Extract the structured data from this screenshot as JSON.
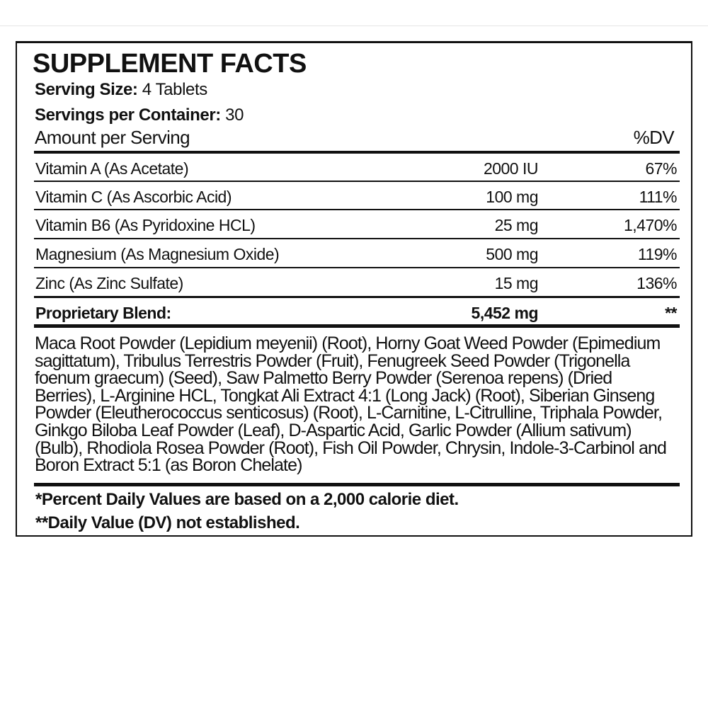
{
  "label": {
    "title": "SUPPLEMENT FACTS",
    "serving_size_label": "Serving Size:",
    "serving_size_value": "4 Tablets",
    "servings_label": "Servings per Container:",
    "servings_value": "30",
    "amount_header": "Amount per Serving",
    "dv_header": "%DV",
    "rows": [
      {
        "name": "Vitamin A (As Acetate)",
        "amount": "2000 IU",
        "dv": "67%"
      },
      {
        "name": "Vitamin C (As Ascorbic Acid)",
        "amount": "100 mg",
        "dv": "111%"
      },
      {
        "name": "Vitamin B6 (As Pyridoxine HCL)",
        "amount": "25 mg",
        "dv": "1,470%"
      },
      {
        "name": "Magnesium (As Magnesium Oxide)",
        "amount": "500 mg",
        "dv": "119%"
      },
      {
        "name": "Zinc (As Zinc Sulfate)",
        "amount": "15 mg",
        "dv": "136%"
      }
    ],
    "blend": {
      "name": "Proprietary Blend:",
      "amount": "5,452 mg",
      "dv": "**"
    },
    "ingredients_lines": [
      "Maca Root Powder (Lepidium meyenii) (Root), Horny Goat Weed Powder (Epimedium",
      "sagittatum), Tribulus Terrestris Powder (Fruit), Fenugreek Seed Powder (Trigonella",
      "foenum graecum) (Seed), Saw Palmetto Berry Powder (Serenoa repens) (Dried",
      "Berries), L-Arginine HCL, Tongkat Ali Extract 4:1 (Long Jack) (Root), Siberian Ginseng",
      "Powder (Eleutherococcus senticosus) (Root), L-Carnitine, L-Citrulline, Triphala Powder,",
      "Ginkgo Biloba Leaf Powder (Leaf), D-Aspartic Acid, Garlic Powder (Allium sativum)",
      "(Bulb), Rhodiola Rosea Powder (Root), Fish Oil Powder, Chrysin, Indole-3-Carbinol and",
      "Boron Extract 5:1 (as Boron Chelate)"
    ],
    "footnote_1": "*Percent Daily Values are based on a 2,000 calorie diet.",
    "footnote_2": "**Daily Value (DV) not established."
  }
}
